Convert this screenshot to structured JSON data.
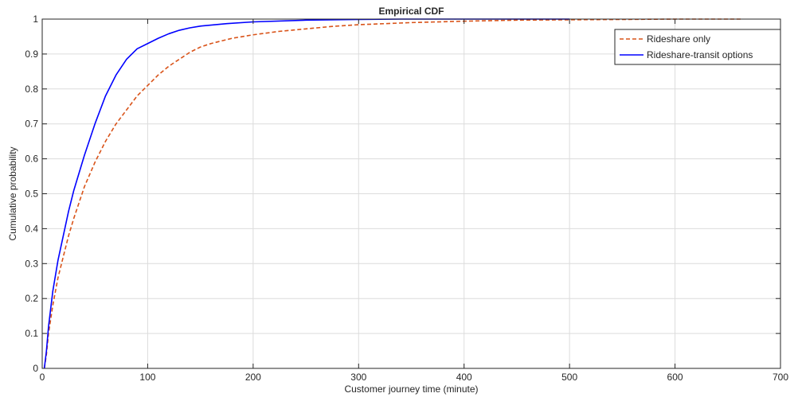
{
  "chart_data": {
    "type": "line",
    "title": "Empirical CDF",
    "xlabel": "Customer journey time (minute)",
    "ylabel": "Cumulative probability",
    "xlim": [
      0,
      700
    ],
    "ylim": [
      0,
      1
    ],
    "xticks": [
      0,
      100,
      200,
      300,
      400,
      500,
      600,
      700
    ],
    "yticks": [
      0,
      0.1,
      0.2,
      0.3,
      0.4,
      0.5,
      0.6,
      0.7,
      0.8,
      0.9,
      1
    ],
    "xtick_labels": [
      "0",
      "100",
      "200",
      "300",
      "400",
      "500",
      "600",
      "700"
    ],
    "ytick_labels": [
      "0",
      "0.1",
      "0.2",
      "0.3",
      "0.4",
      "0.5",
      "0.6",
      "0.7",
      "0.8",
      "0.9",
      "1"
    ],
    "grid": true,
    "legend_position": "top-right",
    "series": [
      {
        "name": "Rideshare only",
        "color": "#D95319",
        "line_style": "dashed",
        "points": [
          [
            2,
            0
          ],
          [
            4,
            0.04
          ],
          [
            6,
            0.1
          ],
          [
            10,
            0.18
          ],
          [
            15,
            0.26
          ],
          [
            20,
            0.32
          ],
          [
            25,
            0.38
          ],
          [
            30,
            0.43
          ],
          [
            40,
            0.52
          ],
          [
            50,
            0.59
          ],
          [
            60,
            0.65
          ],
          [
            70,
            0.7
          ],
          [
            80,
            0.74
          ],
          [
            90,
            0.78
          ],
          [
            100,
            0.81
          ],
          [
            110,
            0.84
          ],
          [
            120,
            0.865
          ],
          [
            130,
            0.885
          ],
          [
            140,
            0.905
          ],
          [
            150,
            0.92
          ],
          [
            160,
            0.93
          ],
          [
            180,
            0.945
          ],
          [
            200,
            0.955
          ],
          [
            225,
            0.965
          ],
          [
            250,
            0.972
          ],
          [
            275,
            0.979
          ],
          [
            300,
            0.984
          ],
          [
            350,
            0.99
          ],
          [
            400,
            0.994
          ],
          [
            450,
            0.997
          ],
          [
            500,
            0.998
          ],
          [
            550,
            0.999
          ],
          [
            600,
            1.0
          ],
          [
            663,
            1.0
          ]
        ]
      },
      {
        "name": "Rideshare-transit options",
        "color": "#0000FF",
        "line_style": "solid",
        "points": [
          [
            2,
            0
          ],
          [
            4,
            0.05
          ],
          [
            6,
            0.12
          ],
          [
            10,
            0.22
          ],
          [
            15,
            0.31
          ],
          [
            20,
            0.38
          ],
          [
            25,
            0.45
          ],
          [
            30,
            0.51
          ],
          [
            40,
            0.61
          ],
          [
            50,
            0.7
          ],
          [
            60,
            0.78
          ],
          [
            70,
            0.84
          ],
          [
            80,
            0.885
          ],
          [
            90,
            0.915
          ],
          [
            100,
            0.93
          ],
          [
            110,
            0.945
          ],
          [
            120,
            0.958
          ],
          [
            130,
            0.968
          ],
          [
            140,
            0.975
          ],
          [
            150,
            0.98
          ],
          [
            175,
            0.987
          ],
          [
            200,
            0.992
          ],
          [
            250,
            0.997
          ],
          [
            300,
            0.999
          ],
          [
            340,
            1.0
          ],
          [
            500,
            1.0
          ]
        ]
      }
    ]
  }
}
